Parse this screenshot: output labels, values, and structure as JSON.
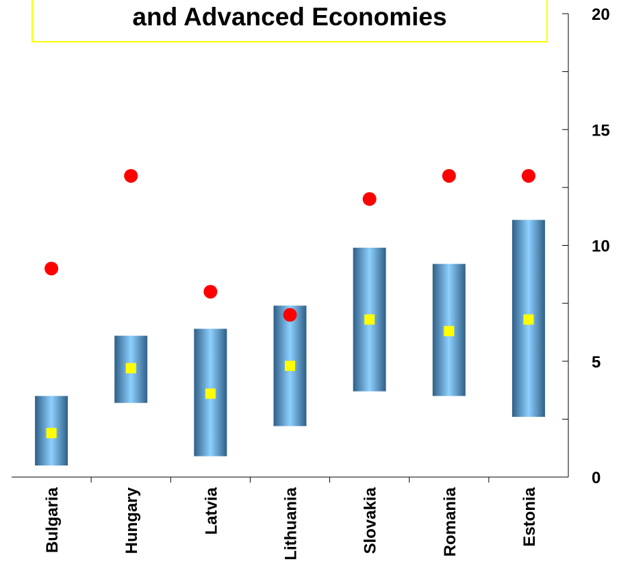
{
  "chart_data": {
    "type": "range-bar-with-markers",
    "title": "and Advanced Economies",
    "categories": [
      "Bulgaria",
      "Hungary",
      "Latvia",
      "Lithuania",
      "Slovakia",
      "Romania",
      "Estonia"
    ],
    "range_low": [
      0.5,
      3.2,
      0.9,
      2.2,
      3.7,
      3.5,
      2.6
    ],
    "range_high": [
      3.5,
      6.1,
      6.4,
      7.4,
      9.9,
      9.2,
      11.1
    ],
    "square_values": [
      1.9,
      4.7,
      3.6,
      4.8,
      6.8,
      6.3,
      6.8
    ],
    "circle_values": [
      9.0,
      13.0,
      8.0,
      7.0,
      12.0,
      13.0,
      13.0
    ],
    "ylim": [
      0,
      20
    ],
    "y_ticks": [
      "0",
      "5",
      "10",
      "15",
      "20"
    ],
    "y_axis_side": "right",
    "colors": {
      "bar_edge": "#2f5f86",
      "bar_center": "#8ed0ff",
      "square": "#ffff00",
      "circle": "#ff0000",
      "title_border": "#ffff00"
    }
  }
}
